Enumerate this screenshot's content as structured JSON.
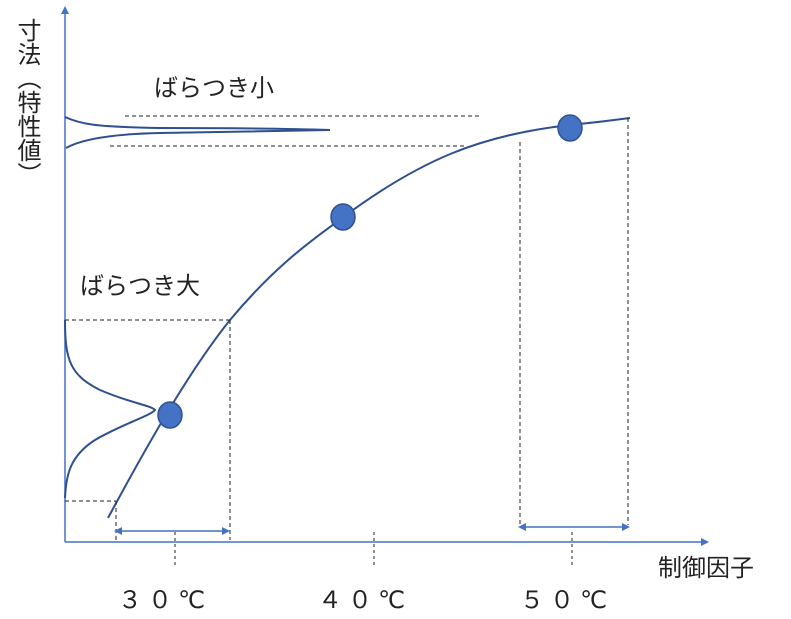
{
  "y_axis_label": "寸法（特性値）",
  "x_axis_label": "制御因子",
  "small_variation_label": "ばらつき小",
  "large_variation_label": "ばらつき大",
  "ticks": [
    "３０℃",
    "４０℃",
    "５０℃"
  ],
  "colors": {
    "curve": "#2f4f8f",
    "marker": "#4472c4",
    "axis": "#4472c4"
  }
}
